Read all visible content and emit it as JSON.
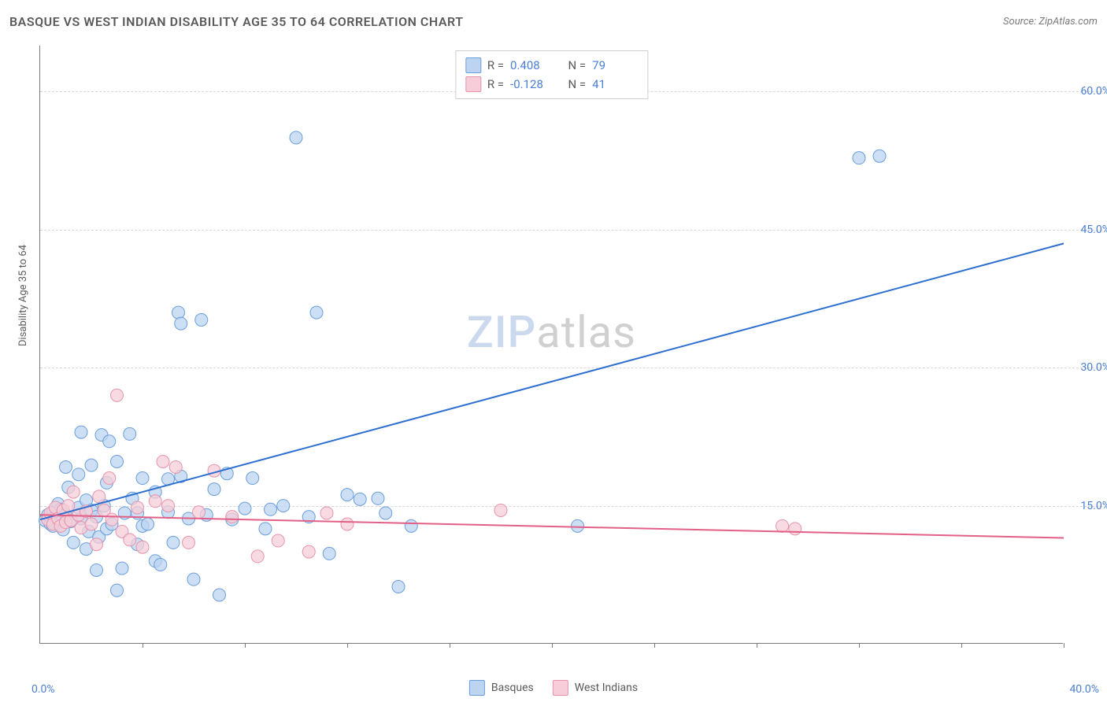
{
  "header": {
    "title": "BASQUE VS WEST INDIAN DISABILITY AGE 35 TO 64 CORRELATION CHART",
    "source": "Source: ZipAtlas.com"
  },
  "ylabel": "Disability Age 35 to 64",
  "watermark": {
    "a": "ZIP",
    "b": "atlas"
  },
  "xlim": [
    0,
    40
  ],
  "ylim": [
    0,
    65
  ],
  "x_origin_label": "0.0%",
  "x_max_label": "40.0%",
  "y_ticks": [
    {
      "v": 15,
      "label": "15.0%"
    },
    {
      "v": 30,
      "label": "30.0%"
    },
    {
      "v": 45,
      "label": "45.0%"
    },
    {
      "v": 60,
      "label": "60.0%"
    }
  ],
  "x_tick_positions": [
    4,
    8,
    12,
    16,
    20,
    24,
    28,
    32,
    36,
    40
  ],
  "grid_color": "#d8d8d8",
  "series": [
    {
      "name": "Basques",
      "fill": "#bcd4f0",
      "stroke": "#6a9edb",
      "line_color": "#2d6fd0",
      "r_value": "0.408",
      "n_value": "79",
      "line": {
        "x1": 0,
        "y1": 13.5,
        "x2": 40,
        "y2": 43.5
      },
      "marker_r": 8,
      "points": [
        [
          0.2,
          13.4
        ],
        [
          0.3,
          14.0
        ],
        [
          0.4,
          13.0
        ],
        [
          0.5,
          14.3
        ],
        [
          0.5,
          12.8
        ],
        [
          0.6,
          13.8
        ],
        [
          0.7,
          15.2
        ],
        [
          0.8,
          13.2
        ],
        [
          0.8,
          14.6
        ],
        [
          0.9,
          12.4
        ],
        [
          1.0,
          19.2
        ],
        [
          1.0,
          14.0
        ],
        [
          1.1,
          17.0
        ],
        [
          1.2,
          13.3
        ],
        [
          1.3,
          11.0
        ],
        [
          1.5,
          18.4
        ],
        [
          1.5,
          14.8
        ],
        [
          1.6,
          23.0
        ],
        [
          1.6,
          13.6
        ],
        [
          1.8,
          15.6
        ],
        [
          1.8,
          10.3
        ],
        [
          1.9,
          12.2
        ],
        [
          2.0,
          19.4
        ],
        [
          2.0,
          14.5
        ],
        [
          2.2,
          8.0
        ],
        [
          2.2,
          13.8
        ],
        [
          2.3,
          11.6
        ],
        [
          2.4,
          22.7
        ],
        [
          2.5,
          15.0
        ],
        [
          2.6,
          17.5
        ],
        [
          2.6,
          12.5
        ],
        [
          2.7,
          22.0
        ],
        [
          2.8,
          13.0
        ],
        [
          3.0,
          19.8
        ],
        [
          3.0,
          5.8
        ],
        [
          3.2,
          8.2
        ],
        [
          3.3,
          14.2
        ],
        [
          3.5,
          22.8
        ],
        [
          3.6,
          15.8
        ],
        [
          3.8,
          14.2
        ],
        [
          3.8,
          10.8
        ],
        [
          4.0,
          18.0
        ],
        [
          4.0,
          12.8
        ],
        [
          4.2,
          13.0
        ],
        [
          4.5,
          9.0
        ],
        [
          4.5,
          16.5
        ],
        [
          4.7,
          8.6
        ],
        [
          5.0,
          14.3
        ],
        [
          5.0,
          17.9
        ],
        [
          5.2,
          11.0
        ],
        [
          5.4,
          36.0
        ],
        [
          5.5,
          34.8
        ],
        [
          5.5,
          18.2
        ],
        [
          5.8,
          13.6
        ],
        [
          6.0,
          7.0
        ],
        [
          6.3,
          35.2
        ],
        [
          6.5,
          14.0
        ],
        [
          6.8,
          16.8
        ],
        [
          7.0,
          5.3
        ],
        [
          7.3,
          18.5
        ],
        [
          7.5,
          13.5
        ],
        [
          8.0,
          14.7
        ],
        [
          8.3,
          18.0
        ],
        [
          8.8,
          12.5
        ],
        [
          9.0,
          14.6
        ],
        [
          9.5,
          15.0
        ],
        [
          10.0,
          55.0
        ],
        [
          10.5,
          13.8
        ],
        [
          10.8,
          36.0
        ],
        [
          11.3,
          9.8
        ],
        [
          12.0,
          16.2
        ],
        [
          12.5,
          15.7
        ],
        [
          13.2,
          15.8
        ],
        [
          13.5,
          14.2
        ],
        [
          14.0,
          6.2
        ],
        [
          14.5,
          12.8
        ],
        [
          21.0,
          12.8
        ],
        [
          32.0,
          52.8
        ],
        [
          32.8,
          53.0
        ]
      ]
    },
    {
      "name": "West Indians",
      "fill": "#f6cdd8",
      "stroke": "#e693ab",
      "line_color": "#e26088",
      "r_value": "-0.128",
      "n_value": "41",
      "line": {
        "x1": 0,
        "y1": 14.0,
        "x2": 40,
        "y2": 11.5
      },
      "marker_r": 8,
      "points": [
        [
          0.3,
          13.5
        ],
        [
          0.4,
          14.2
        ],
        [
          0.5,
          13.0
        ],
        [
          0.6,
          14.8
        ],
        [
          0.7,
          13.6
        ],
        [
          0.8,
          12.8
        ],
        [
          0.9,
          14.5
        ],
        [
          1.0,
          13.2
        ],
        [
          1.1,
          15.0
        ],
        [
          1.2,
          13.4
        ],
        [
          1.3,
          16.5
        ],
        [
          1.5,
          14.0
        ],
        [
          1.6,
          12.6
        ],
        [
          1.8,
          14.4
        ],
        [
          2.0,
          13.0
        ],
        [
          2.2,
          10.8
        ],
        [
          2.3,
          16.0
        ],
        [
          2.5,
          14.5
        ],
        [
          2.7,
          18.0
        ],
        [
          2.8,
          13.5
        ],
        [
          3.0,
          27.0
        ],
        [
          3.2,
          12.2
        ],
        [
          3.5,
          11.3
        ],
        [
          3.8,
          14.8
        ],
        [
          4.0,
          10.5
        ],
        [
          4.5,
          15.5
        ],
        [
          4.8,
          19.8
        ],
        [
          5.0,
          15.0
        ],
        [
          5.3,
          19.2
        ],
        [
          5.8,
          11.0
        ],
        [
          6.2,
          14.3
        ],
        [
          6.8,
          18.8
        ],
        [
          7.5,
          13.8
        ],
        [
          8.5,
          9.5
        ],
        [
          9.3,
          11.2
        ],
        [
          10.5,
          10.0
        ],
        [
          11.2,
          14.2
        ],
        [
          12.0,
          13.0
        ],
        [
          18.0,
          14.5
        ],
        [
          29.0,
          12.8
        ],
        [
          29.5,
          12.5
        ]
      ]
    }
  ],
  "legend_bottom": [
    {
      "label": "Basques",
      "fill": "#bcd4f0",
      "stroke": "#6a9edb"
    },
    {
      "label": "West Indians",
      "fill": "#f6cdd8",
      "stroke": "#e693ab"
    }
  ]
}
